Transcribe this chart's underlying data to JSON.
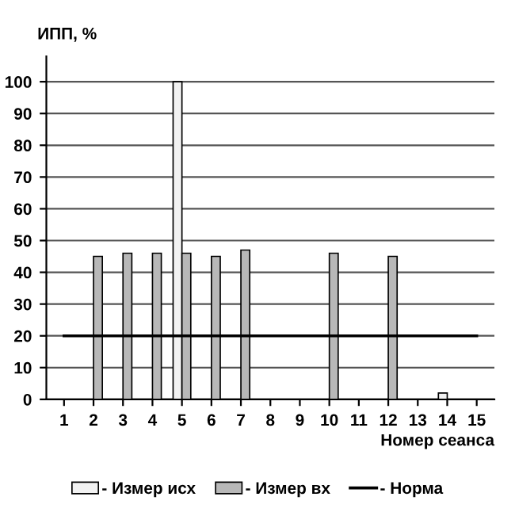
{
  "chart_data": {
    "type": "bar",
    "ylabel": "ИПП, %",
    "xlabel": "Номер сеанса",
    "categories": [
      "1",
      "2",
      "3",
      "4",
      "5",
      "6",
      "7",
      "8",
      "9",
      "10",
      "11",
      "12",
      "13",
      "14",
      "15"
    ],
    "series": [
      {
        "name": "- Измер исх",
        "color": "#f2f2f2",
        "values": [
          null,
          null,
          null,
          null,
          100,
          null,
          null,
          null,
          null,
          null,
          null,
          null,
          null,
          2,
          null
        ]
      },
      {
        "name": "- Измер вх",
        "color": "#b8b8b8",
        "values": [
          null,
          45,
          46,
          46,
          46,
          45,
          47,
          null,
          null,
          46,
          null,
          45,
          null,
          null,
          null
        ]
      },
      {
        "name": "- Норма",
        "type": "line",
        "color": "#000000",
        "values": [
          20,
          20,
          20,
          20,
          20,
          20,
          20,
          20,
          20,
          20,
          20,
          20,
          20,
          20,
          20
        ]
      }
    ],
    "ylim": [
      0,
      108
    ],
    "yticks": [
      0,
      10,
      20,
      30,
      40,
      50,
      60,
      70,
      80,
      90,
      100
    ],
    "grid": "y",
    "legend": "bottom",
    "marker": "none",
    "line_style": "solid"
  }
}
